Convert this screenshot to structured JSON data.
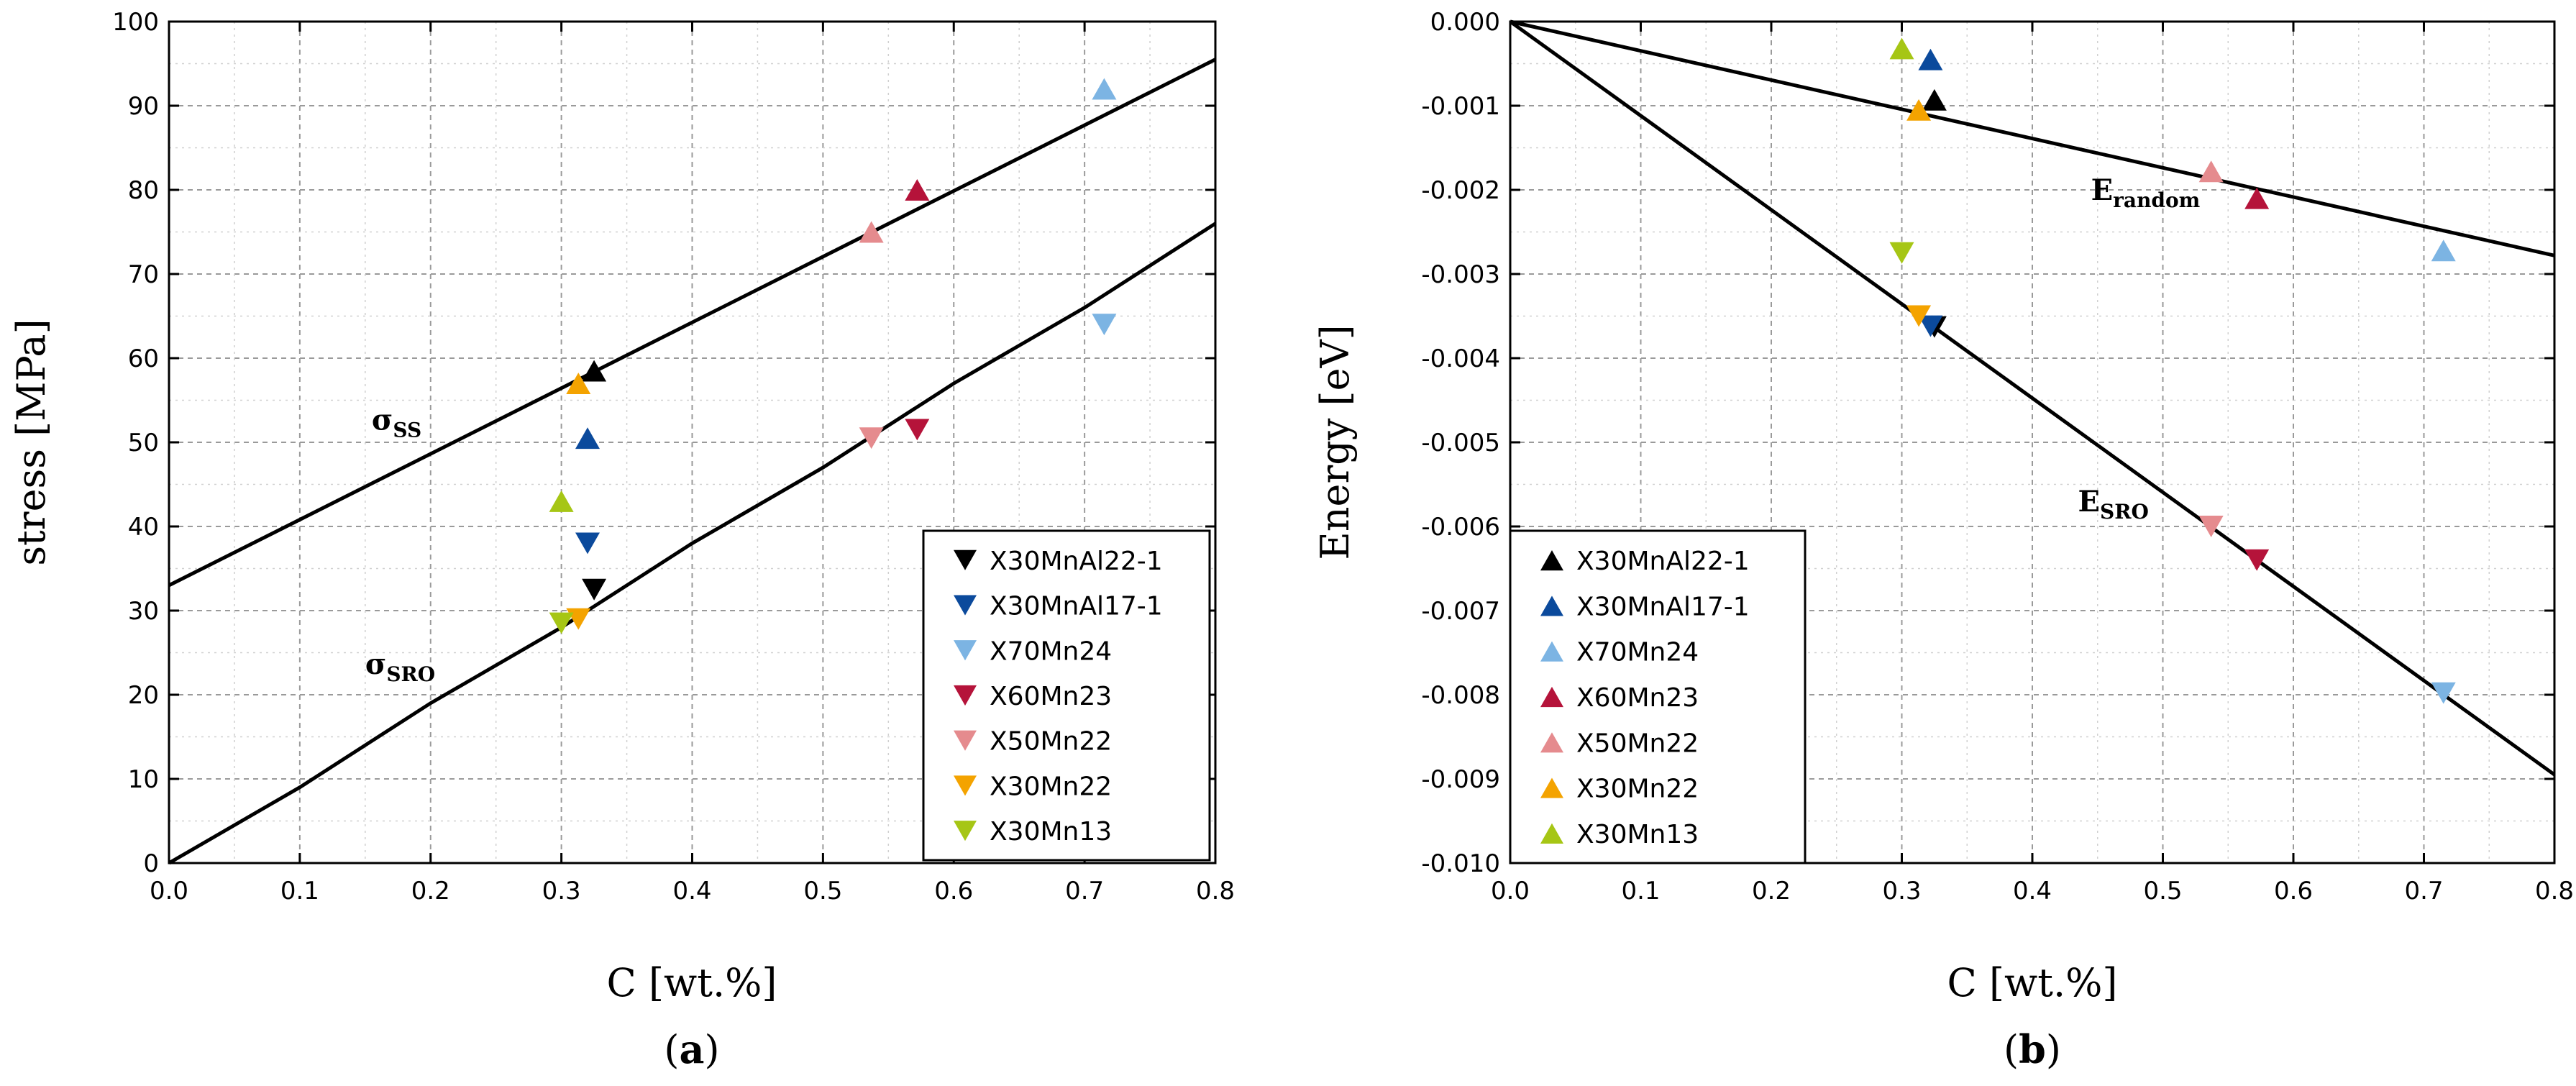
{
  "colors": {
    "X30MnAl22-1": "#000000",
    "X30MnAl17-1": "#0b4a9c",
    "X70Mn24": "#7cb4e3",
    "X60Mn23": "#b5133a",
    "X50Mn22": "#e58b8e",
    "X30Mn22": "#f4a300",
    "X30Mn13": "#a6c615"
  },
  "chart_data": [
    {
      "panel": "a",
      "type": "scatter",
      "panel_label": "(a)",
      "panel_label_parts": {
        "open": "(",
        "letter": "a",
        "close": ")"
      },
      "xlabel": "C [wt.%]",
      "ylabel": "stress [MPa]",
      "xlim": [
        0.0,
        0.8
      ],
      "ylim": [
        0,
        100
      ],
      "grid": true,
      "x_ticks": [
        "0.0",
        "0.1",
        "0.2",
        "0.3",
        "0.4",
        "0.5",
        "0.6",
        "0.7",
        "0.8"
      ],
      "y_ticks": [
        "0",
        "10",
        "20",
        "30",
        "40",
        "50",
        "60",
        "70",
        "80",
        "90",
        "100"
      ],
      "legend": {
        "placement": "bottom-right",
        "marker": "down-triangle",
        "entries": [
          "X30MnAl22-1",
          "X30MnAl17-1",
          "X70Mn24",
          "X60Mn23",
          "X50Mn22",
          "X30Mn22",
          "X30Mn13"
        ]
      },
      "lines": [
        {
          "name": "σSS",
          "label_main": "σ",
          "label_sub": "SS",
          "x": [
            0.0,
            0.8
          ],
          "y": [
            33,
            95.5
          ],
          "label_at": [
            0.155,
            51.5
          ]
        },
        {
          "name": "σSRO",
          "label_main": "σ",
          "label_sub": "SRO",
          "x": [
            0.0,
            0.1,
            0.2,
            0.3,
            0.4,
            0.5,
            0.6,
            0.7,
            0.8
          ],
          "y": [
            0,
            9,
            19,
            28,
            38,
            47,
            57,
            66,
            76
          ],
          "label_at": [
            0.15,
            22.5
          ]
        }
      ],
      "series": [
        {
          "name": "X30MnAl22-1",
          "points": [
            {
              "x": 0.325,
              "y": 58.5,
              "marker": "up"
            },
            {
              "x": 0.325,
              "y": 32.5,
              "marker": "down"
            }
          ]
        },
        {
          "name": "X30MnAl17-1",
          "points": [
            {
              "x": 0.32,
              "y": 50.5,
              "marker": "up"
            },
            {
              "x": 0.32,
              "y": 38,
              "marker": "down"
            }
          ]
        },
        {
          "name": "X70Mn24",
          "points": [
            {
              "x": 0.715,
              "y": 92,
              "marker": "up"
            },
            {
              "x": 0.715,
              "y": 64,
              "marker": "down"
            }
          ]
        },
        {
          "name": "X60Mn23",
          "points": [
            {
              "x": 0.572,
              "y": 80,
              "marker": "up"
            },
            {
              "x": 0.572,
              "y": 51.5,
              "marker": "down"
            }
          ]
        },
        {
          "name": "X50Mn22",
          "points": [
            {
              "x": 0.537,
              "y": 75,
              "marker": "up"
            },
            {
              "x": 0.537,
              "y": 50.5,
              "marker": "down"
            }
          ]
        },
        {
          "name": "X30Mn22",
          "points": [
            {
              "x": 0.313,
              "y": 57,
              "marker": "up"
            },
            {
              "x": 0.313,
              "y": 29,
              "marker": "down"
            }
          ]
        },
        {
          "name": "X30Mn13",
          "points": [
            {
              "x": 0.3,
              "y": 43,
              "marker": "up"
            },
            {
              "x": 0.3,
              "y": 28.5,
              "marker": "down"
            }
          ]
        }
      ]
    },
    {
      "panel": "b",
      "type": "scatter",
      "panel_label": "(b)",
      "panel_label_parts": {
        "open": "(",
        "letter": "b",
        "close": ")"
      },
      "xlabel": "C [wt.%]",
      "ylabel": "Energy [eV]",
      "xlim": [
        0.0,
        0.8
      ],
      "ylim": [
        -0.01,
        0.0
      ],
      "grid": true,
      "x_ticks": [
        "0.0",
        "0.1",
        "0.2",
        "0.3",
        "0.4",
        "0.5",
        "0.6",
        "0.7",
        "0.8"
      ],
      "y_ticks": [
        "-0.010",
        "-0.009",
        "-0.008",
        "-0.007",
        "-0.006",
        "-0.005",
        "-0.004",
        "-0.003",
        "-0.002",
        "-0.001",
        "0.000"
      ],
      "legend": {
        "placement": "bottom-left",
        "marker": "up-triangle",
        "entries": [
          "X30MnAl22-1",
          "X30MnAl17-1",
          "X70Mn24",
          "X60Mn23",
          "X50Mn22",
          "X30Mn22",
          "X30Mn13"
        ]
      },
      "lines": [
        {
          "name": "Erandom",
          "label_main": "E",
          "label_sub": "random",
          "x": [
            0.0,
            0.8
          ],
          "y": [
            0.0,
            -0.00278
          ],
          "label_at": [
            0.445,
            -0.00212
          ]
        },
        {
          "name": "ESRO",
          "label_main": "E",
          "label_sub": "SRO",
          "x": [
            0.0,
            0.8
          ],
          "y": [
            0.0,
            -0.00895
          ],
          "label_at": [
            0.435,
            -0.00582
          ]
        }
      ],
      "series": [
        {
          "name": "X30MnAl22-1",
          "points": [
            {
              "x": 0.325,
              "y": -0.00093,
              "marker": "up"
            },
            {
              "x": 0.325,
              "y": -0.00363,
              "marker": "down"
            }
          ]
        },
        {
          "name": "X30MnAl17-1",
          "points": [
            {
              "x": 0.322,
              "y": -0.00045,
              "marker": "up"
            },
            {
              "x": 0.322,
              "y": -0.00362,
              "marker": "down"
            }
          ]
        },
        {
          "name": "X70Mn24",
          "points": [
            {
              "x": 0.715,
              "y": -0.00272,
              "marker": "up"
            },
            {
              "x": 0.715,
              "y": -0.00798,
              "marker": "down"
            }
          ]
        },
        {
          "name": "X60Mn23",
          "points": [
            {
              "x": 0.572,
              "y": -0.0021,
              "marker": "up"
            },
            {
              "x": 0.572,
              "y": -0.0064,
              "marker": "down"
            }
          ]
        },
        {
          "name": "X50Mn22",
          "points": [
            {
              "x": 0.537,
              "y": -0.00178,
              "marker": "up"
            },
            {
              "x": 0.537,
              "y": -0.006,
              "marker": "down"
            }
          ]
        },
        {
          "name": "X30Mn22",
          "points": [
            {
              "x": 0.313,
              "y": -0.00105,
              "marker": "up"
            },
            {
              "x": 0.313,
              "y": -0.0035,
              "marker": "down"
            }
          ]
        },
        {
          "name": "X30Mn13",
          "points": [
            {
              "x": 0.3,
              "y": -0.00032,
              "marker": "up"
            },
            {
              "x": 0.3,
              "y": -0.00275,
              "marker": "down"
            }
          ]
        }
      ]
    }
  ]
}
